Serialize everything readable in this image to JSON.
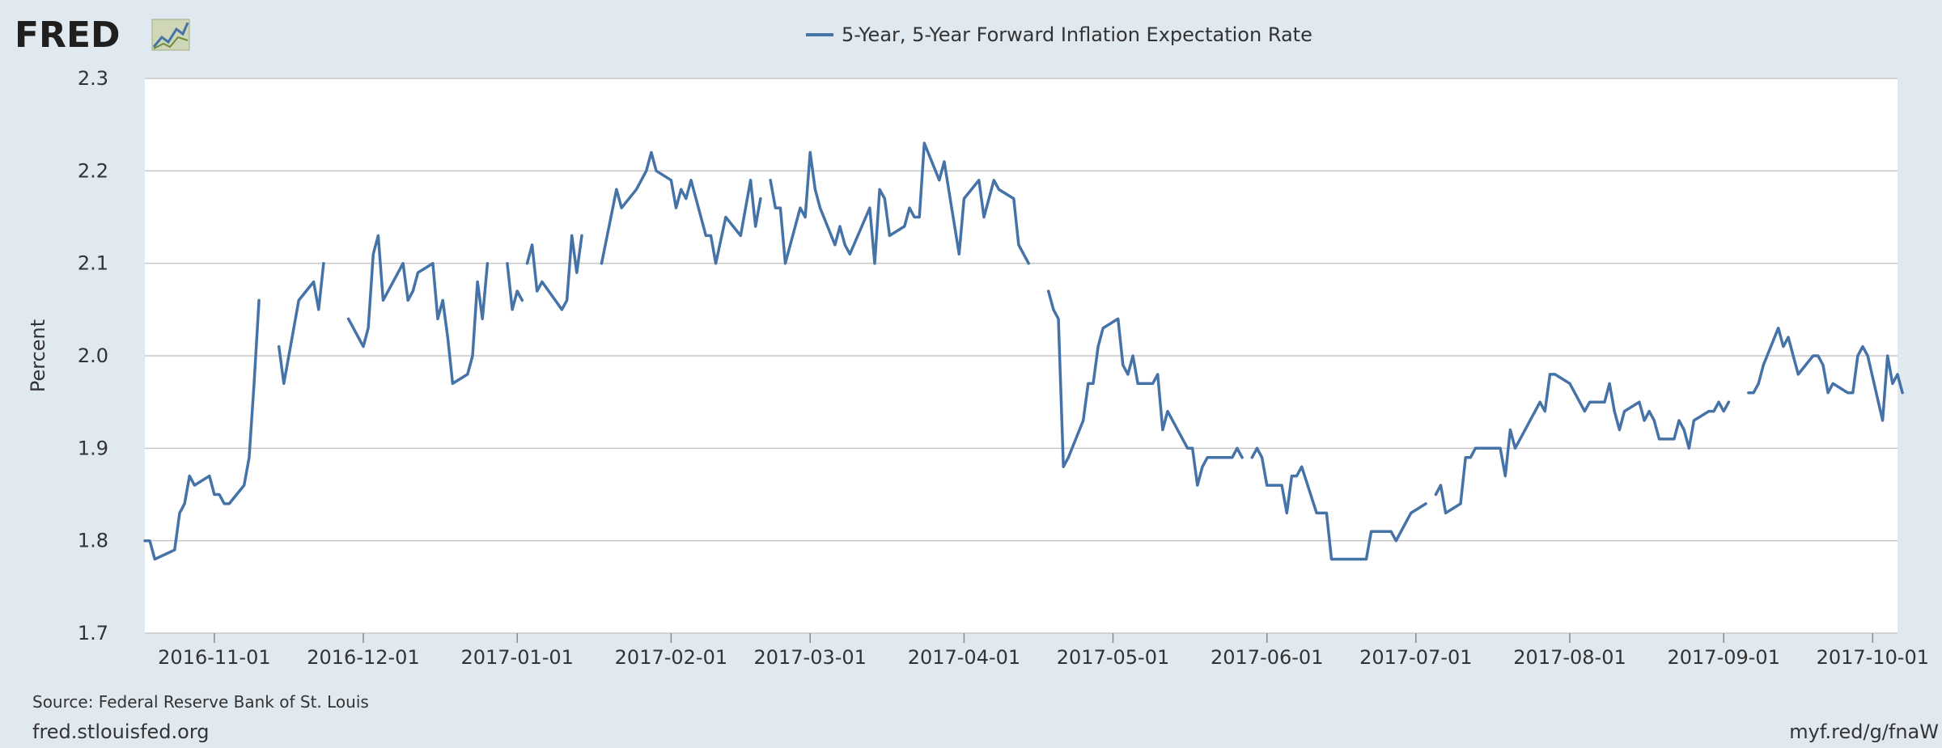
{
  "brand": {
    "name": "FRED"
  },
  "footer": {
    "source": "Source: Federal Reserve Bank of St. Louis",
    "site": "fred.stlouisfed.org",
    "short_url": "myf.red/g/fnaW"
  },
  "colors": {
    "background": "#e1e9f0",
    "plot": "#ffffff",
    "line": "#4572a7",
    "grid": "#c7c7c7"
  },
  "chart_data": {
    "type": "line",
    "title": "",
    "legend": "5-Year, 5-Year Forward Inflation Expectation Rate",
    "legend_position": "top-center",
    "xlabel": "",
    "ylabel": "Percent",
    "ylim": [
      1.7,
      2.3
    ],
    "y_ticks": [
      "1.7",
      "1.8",
      "1.9",
      "2.0",
      "2.1",
      "2.2",
      "2.3"
    ],
    "x_range": [
      "2016-10-18",
      "2017-10-06"
    ],
    "x_ticks": [
      "2016-11-01",
      "2016-12-01",
      "2017-01-01",
      "2017-02-01",
      "2017-03-01",
      "2017-04-01",
      "2017-05-01",
      "2017-06-01",
      "2017-07-01",
      "2017-08-01",
      "2017-09-01",
      "2017-10-01"
    ],
    "grid": true,
    "series": [
      {
        "name": "5-Year, 5-Year Forward Inflation Expectation Rate",
        "segments": [
          [
            [
              "2016-10-18",
              1.8
            ],
            [
              "2016-10-19",
              1.8
            ],
            [
              "2016-10-20",
              1.78
            ],
            [
              "2016-10-24",
              1.79
            ],
            [
              "2016-10-25",
              1.83
            ],
            [
              "2016-10-26",
              1.84
            ],
            [
              "2016-10-27",
              1.87
            ],
            [
              "2016-10-28",
              1.86
            ],
            [
              "2016-10-31",
              1.87
            ],
            [
              "2016-11-01",
              1.85
            ],
            [
              "2016-11-02",
              1.85
            ],
            [
              "2016-11-03",
              1.84
            ],
            [
              "2016-11-04",
              1.84
            ],
            [
              "2016-11-07",
              1.86
            ],
            [
              "2016-11-08",
              1.89
            ],
            [
              "2016-11-09",
              1.97
            ],
            [
              "2016-11-10",
              2.06
            ]
          ],
          [
            [
              "2016-11-14",
              2.01
            ],
            [
              "2016-11-15",
              1.97
            ],
            [
              "2016-11-18",
              2.06
            ],
            [
              "2016-11-21",
              2.08
            ],
            [
              "2016-11-22",
              2.05
            ],
            [
              "2016-11-23",
              2.1
            ]
          ],
          [
            [
              "2016-11-28",
              2.04
            ],
            [
              "2016-12-01",
              2.01
            ],
            [
              "2016-12-02",
              2.03
            ],
            [
              "2016-12-03",
              2.11
            ],
            [
              "2016-12-04",
              2.13
            ],
            [
              "2016-12-05",
              2.06
            ],
            [
              "2016-12-09",
              2.1
            ],
            [
              "2016-12-10",
              2.06
            ],
            [
              "2016-12-11",
              2.07
            ],
            [
              "2016-12-12",
              2.09
            ],
            [
              "2016-12-15",
              2.1
            ],
            [
              "2016-12-16",
              2.04
            ],
            [
              "2016-12-17",
              2.06
            ],
            [
              "2016-12-18",
              2.02
            ],
            [
              "2016-12-19",
              1.97
            ],
            [
              "2016-12-22",
              1.98
            ],
            [
              "2016-12-23",
              2.0
            ],
            [
              "2016-12-24",
              2.08
            ],
            [
              "2016-12-25",
              2.04
            ],
            [
              "2016-12-26",
              2.1
            ]
          ],
          [
            [
              "2016-12-30",
              2.1
            ],
            [
              "2016-12-31",
              2.05
            ],
            [
              "2017-01-01",
              2.07
            ],
            [
              "2017-01-02",
              2.06
            ]
          ],
          [
            [
              "2017-01-03",
              2.1
            ],
            [
              "2017-01-04",
              2.12
            ],
            [
              "2017-01-05",
              2.07
            ],
            [
              "2017-01-06",
              2.08
            ],
            [
              "2017-01-10",
              2.05
            ],
            [
              "2017-01-11",
              2.06
            ],
            [
              "2017-01-12",
              2.13
            ],
            [
              "2017-01-13",
              2.09
            ],
            [
              "2017-01-14",
              2.13
            ]
          ],
          [
            [
              "2017-01-18",
              2.1
            ],
            [
              "2017-01-21",
              2.18
            ],
            [
              "2017-01-22",
              2.16
            ],
            [
              "2017-01-25",
              2.18
            ],
            [
              "2017-01-27",
              2.2
            ],
            [
              "2017-01-28",
              2.22
            ],
            [
              "2017-01-29",
              2.2
            ],
            [
              "2017-02-01",
              2.19
            ],
            [
              "2017-02-02",
              2.16
            ],
            [
              "2017-02-03",
              2.18
            ],
            [
              "2017-02-04",
              2.17
            ],
            [
              "2017-02-05",
              2.19
            ],
            [
              "2017-02-08",
              2.13
            ],
            [
              "2017-02-09",
              2.13
            ],
            [
              "2017-02-10",
              2.1
            ],
            [
              "2017-02-12",
              2.15
            ],
            [
              "2017-02-15",
              2.13
            ],
            [
              "2017-02-17",
              2.19
            ],
            [
              "2017-02-18",
              2.14
            ],
            [
              "2017-02-19",
              2.17
            ]
          ],
          [
            [
              "2017-02-21",
              2.19
            ],
            [
              "2017-02-22",
              2.16
            ],
            [
              "2017-02-23",
              2.16
            ],
            [
              "2017-02-24",
              2.1
            ],
            [
              "2017-02-27",
              2.16
            ],
            [
              "2017-02-28",
              2.15
            ],
            [
              "2017-03-01",
              2.22
            ],
            [
              "2017-03-02",
              2.18
            ],
            [
              "2017-03-03",
              2.16
            ],
            [
              "2017-03-06",
              2.12
            ],
            [
              "2017-03-07",
              2.14
            ],
            [
              "2017-03-08",
              2.12
            ],
            [
              "2017-03-09",
              2.11
            ],
            [
              "2017-03-13",
              2.16
            ],
            [
              "2017-03-14",
              2.1
            ],
            [
              "2017-03-15",
              2.18
            ],
            [
              "2017-03-16",
              2.17
            ],
            [
              "2017-03-17",
              2.13
            ],
            [
              "2017-03-20",
              2.14
            ],
            [
              "2017-03-21",
              2.16
            ],
            [
              "2017-03-22",
              2.15
            ],
            [
              "2017-03-23",
              2.15
            ],
            [
              "2017-03-24",
              2.23
            ],
            [
              "2017-03-27",
              2.19
            ],
            [
              "2017-03-28",
              2.21
            ],
            [
              "2017-03-31",
              2.11
            ],
            [
              "2017-04-01",
              2.17
            ],
            [
              "2017-04-04",
              2.19
            ],
            [
              "2017-04-05",
              2.15
            ],
            [
              "2017-04-07",
              2.19
            ],
            [
              "2017-04-08",
              2.18
            ],
            [
              "2017-04-11",
              2.17
            ],
            [
              "2017-04-12",
              2.12
            ],
            [
              "2017-04-14",
              2.1
            ]
          ],
          [
            [
              "2017-04-18",
              2.07
            ],
            [
              "2017-04-19",
              2.05
            ],
            [
              "2017-04-20",
              2.04
            ],
            [
              "2017-04-21",
              1.88
            ],
            [
              "2017-04-22",
              1.89
            ],
            [
              "2017-04-25",
              1.93
            ],
            [
              "2017-04-26",
              1.97
            ],
            [
              "2017-04-27",
              1.97
            ],
            [
              "2017-04-28",
              2.01
            ],
            [
              "2017-04-29",
              2.03
            ],
            [
              "2017-05-02",
              2.04
            ],
            [
              "2017-05-03",
              1.99
            ],
            [
              "2017-05-04",
              1.98
            ],
            [
              "2017-05-05",
              2.0
            ],
            [
              "2017-05-06",
              1.97
            ],
            [
              "2017-05-09",
              1.97
            ],
            [
              "2017-05-10",
              1.98
            ],
            [
              "2017-05-11",
              1.92
            ],
            [
              "2017-05-12",
              1.94
            ],
            [
              "2017-05-16",
              1.9
            ],
            [
              "2017-05-17",
              1.9
            ],
            [
              "2017-05-18",
              1.86
            ],
            [
              "2017-05-19",
              1.88
            ],
            [
              "2017-05-20",
              1.89
            ],
            [
              "2017-05-25",
              1.89
            ],
            [
              "2017-05-26",
              1.9
            ],
            [
              "2017-05-27",
              1.89
            ]
          ],
          [
            [
              "2017-05-29",
              1.89
            ],
            [
              "2017-05-30",
              1.9
            ],
            [
              "2017-05-31",
              1.89
            ],
            [
              "2017-06-01",
              1.86
            ],
            [
              "2017-06-04",
              1.86
            ],
            [
              "2017-06-05",
              1.83
            ],
            [
              "2017-06-06",
              1.87
            ],
            [
              "2017-06-07",
              1.87
            ],
            [
              "2017-06-08",
              1.88
            ],
            [
              "2017-06-11",
              1.83
            ],
            [
              "2017-06-13",
              1.83
            ],
            [
              "2017-06-14",
              1.78
            ],
            [
              "2017-06-21",
              1.78
            ],
            [
              "2017-06-22",
              1.81
            ],
            [
              "2017-06-26",
              1.81
            ],
            [
              "2017-06-27",
              1.8
            ],
            [
              "2017-06-30",
              1.83
            ],
            [
              "2017-07-03",
              1.84
            ]
          ],
          [
            [
              "2017-07-05",
              1.85
            ],
            [
              "2017-07-06",
              1.86
            ],
            [
              "2017-07-07",
              1.83
            ],
            [
              "2017-07-10",
              1.84
            ],
            [
              "2017-07-11",
              1.89
            ],
            [
              "2017-07-12",
              1.89
            ],
            [
              "2017-07-13",
              1.9
            ],
            [
              "2017-07-18",
              1.9
            ],
            [
              "2017-07-19",
              1.87
            ],
            [
              "2017-07-20",
              1.92
            ],
            [
              "2017-07-21",
              1.9
            ],
            [
              "2017-07-25",
              1.94
            ],
            [
              "2017-07-26",
              1.95
            ],
            [
              "2017-07-27",
              1.94
            ],
            [
              "2017-07-28",
              1.98
            ],
            [
              "2017-07-29",
              1.98
            ],
            [
              "2017-08-01",
              1.97
            ],
            [
              "2017-08-04",
              1.94
            ],
            [
              "2017-08-05",
              1.95
            ],
            [
              "2017-08-08",
              1.95
            ],
            [
              "2017-08-09",
              1.97
            ],
            [
              "2017-08-10",
              1.94
            ],
            [
              "2017-08-11",
              1.92
            ],
            [
              "2017-08-12",
              1.94
            ],
            [
              "2017-08-15",
              1.95
            ],
            [
              "2017-08-16",
              1.93
            ],
            [
              "2017-08-17",
              1.94
            ],
            [
              "2017-08-18",
              1.93
            ],
            [
              "2017-08-19",
              1.91
            ],
            [
              "2017-08-22",
              1.91
            ],
            [
              "2017-08-23",
              1.93
            ],
            [
              "2017-08-24",
              1.92
            ],
            [
              "2017-08-25",
              1.9
            ],
            [
              "2017-08-26",
              1.93
            ],
            [
              "2017-08-29",
              1.94
            ],
            [
              "2017-08-30",
              1.94
            ],
            [
              "2017-08-31",
              1.95
            ],
            [
              "2017-09-01",
              1.94
            ],
            [
              "2017-09-02",
              1.95
            ]
          ],
          [
            [
              "2017-09-06",
              1.96
            ],
            [
              "2017-09-07",
              1.96
            ],
            [
              "2017-09-08",
              1.97
            ],
            [
              "2017-09-09",
              1.99
            ],
            [
              "2017-09-12",
              2.03
            ],
            [
              "2017-09-13",
              2.01
            ],
            [
              "2017-09-14",
              2.02
            ],
            [
              "2017-09-16",
              1.98
            ],
            [
              "2017-09-19",
              2.0
            ],
            [
              "2017-09-20",
              2.0
            ],
            [
              "2017-09-21",
              1.99
            ],
            [
              "2017-09-22",
              1.96
            ],
            [
              "2017-09-23",
              1.97
            ],
            [
              "2017-09-26",
              1.96
            ],
            [
              "2017-09-27",
              1.96
            ],
            [
              "2017-09-28",
              2.0
            ],
            [
              "2017-09-29",
              2.01
            ],
            [
              "2017-09-30",
              2.0
            ],
            [
              "2017-10-03",
              1.93
            ],
            [
              "2017-10-04",
              2.0
            ],
            [
              "2017-10-05",
              1.97
            ],
            [
              "2017-10-06",
              1.98
            ],
            [
              "2017-10-07",
              1.96
            ]
          ]
        ]
      }
    ]
  }
}
